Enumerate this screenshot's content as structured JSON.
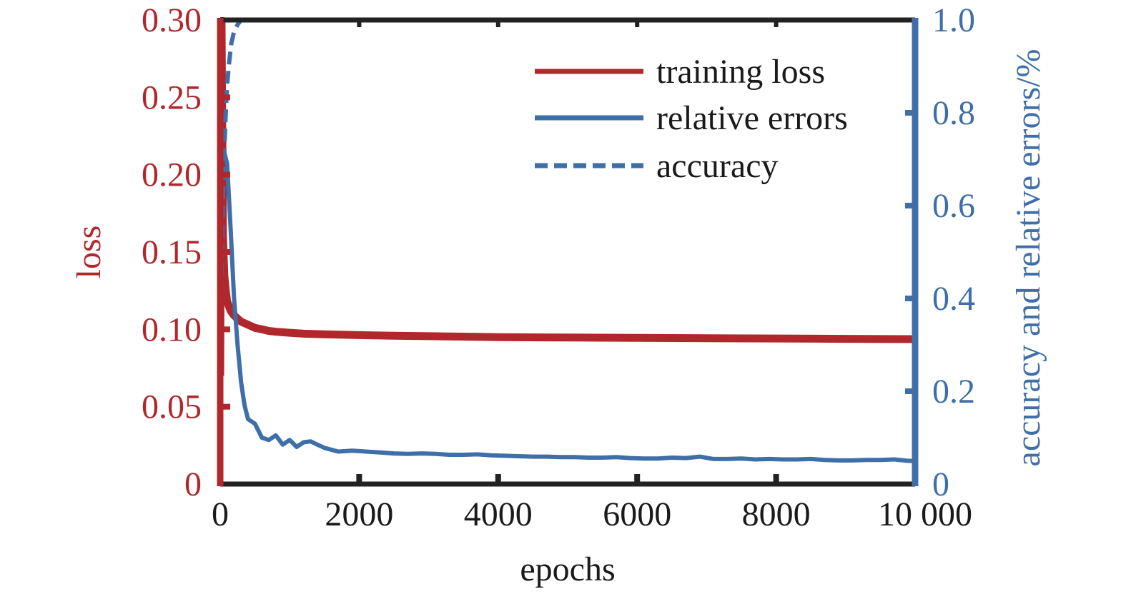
{
  "colors": {
    "loss": "#b0282c",
    "blue": "#3f6fa8",
    "frame": "#222222"
  },
  "chart_data": {
    "type": "line",
    "xlabel": "epochs",
    "ylabel_left": "loss",
    "ylabel_right": "accuracy and relative errors/%",
    "xlim": [
      0,
      10000
    ],
    "ylim_left": [
      0,
      0.3
    ],
    "ylim_right": [
      0,
      1.0
    ],
    "x_ticks": [
      {
        "value": 0,
        "label": "0"
      },
      {
        "value": 2000,
        "label": "2000"
      },
      {
        "value": 4000,
        "label": "4000"
      },
      {
        "value": 6000,
        "label": "6000"
      },
      {
        "value": 8000,
        "label": "8000"
      },
      {
        "value": 10000,
        "label": "10 000"
      }
    ],
    "y_left_ticks": [
      {
        "value": 0,
        "label": "0"
      },
      {
        "value": 0.05,
        "label": "0.05"
      },
      {
        "value": 0.1,
        "label": "0.10"
      },
      {
        "value": 0.15,
        "label": "0.15"
      },
      {
        "value": 0.2,
        "label": "0.20"
      },
      {
        "value": 0.25,
        "label": "0.25"
      },
      {
        "value": 0.3,
        "label": "0.30"
      }
    ],
    "y_right_ticks": [
      {
        "value": 0,
        "label": "0"
      },
      {
        "value": 0.2,
        "label": "0.2"
      },
      {
        "value": 0.4,
        "label": "0.4"
      },
      {
        "value": 0.6,
        "label": "0.6"
      },
      {
        "value": 0.8,
        "label": "0.8"
      },
      {
        "value": 1.0,
        "label": "1.0"
      }
    ],
    "grid": false,
    "legend_position": "top-right",
    "series": [
      {
        "name": "training loss",
        "axis": "left",
        "style": "solid",
        "x": [
          0,
          20,
          40,
          60,
          80,
          100,
          150,
          200,
          250,
          300,
          400,
          500,
          600,
          700,
          800,
          1000,
          1200,
          1500,
          2000,
          2500,
          3000,
          3500,
          4000,
          5000,
          6000,
          7000,
          8000,
          9000,
          10000
        ],
        "y": [
          0.07,
          0.3,
          0.16,
          0.135,
          0.125,
          0.118,
          0.112,
          0.109,
          0.107,
          0.105,
          0.103,
          0.101,
          0.1,
          0.099,
          0.0985,
          0.0978,
          0.0972,
          0.0968,
          0.0963,
          0.0959,
          0.0956,
          0.0953,
          0.095,
          0.0947,
          0.0945,
          0.0943,
          0.0941,
          0.0939,
          0.0937
        ]
      },
      {
        "name": "relative errors",
        "axis": "right",
        "style": "solid",
        "x": [
          0,
          50,
          100,
          150,
          200,
          250,
          300,
          350,
          400,
          500,
          600,
          700,
          800,
          900,
          1000,
          1100,
          1200,
          1300,
          1400,
          1500,
          1700,
          1900,
          2100,
          2300,
          2500,
          2700,
          2900,
          3100,
          3300,
          3500,
          3700,
          3900,
          4100,
          4300,
          4500,
          4700,
          4900,
          5100,
          5300,
          5500,
          5700,
          5900,
          6100,
          6300,
          6500,
          6700,
          6900,
          7100,
          7300,
          7500,
          7700,
          7900,
          8100,
          8300,
          8500,
          8700,
          8900,
          9100,
          9300,
          9500,
          9700,
          9900,
          10000
        ],
        "y": [
          0.72,
          0.72,
          0.69,
          0.55,
          0.4,
          0.3,
          0.22,
          0.17,
          0.14,
          0.13,
          0.1,
          0.095,
          0.105,
          0.085,
          0.095,
          0.08,
          0.09,
          0.092,
          0.085,
          0.078,
          0.07,
          0.072,
          0.07,
          0.068,
          0.066,
          0.065,
          0.066,
          0.065,
          0.063,
          0.063,
          0.064,
          0.062,
          0.061,
          0.06,
          0.059,
          0.059,
          0.058,
          0.058,
          0.057,
          0.057,
          0.058,
          0.056,
          0.055,
          0.055,
          0.057,
          0.056,
          0.059,
          0.054,
          0.054,
          0.055,
          0.053,
          0.054,
          0.053,
          0.053,
          0.054,
          0.052,
          0.051,
          0.051,
          0.052,
          0.052,
          0.053,
          0.05,
          0.05
        ]
      },
      {
        "name": "accuracy",
        "axis": "right",
        "style": "dashed",
        "x": [
          0,
          20,
          40,
          60,
          80,
          100,
          130,
          160,
          200,
          250,
          300,
          400,
          600,
          1000,
          2000,
          4000,
          6000,
          8000,
          10000
        ],
        "y": [
          0.24,
          0.45,
          0.62,
          0.72,
          0.8,
          0.86,
          0.91,
          0.95,
          0.975,
          0.99,
          1.0,
          1.0,
          1.0,
          1.0,
          1.0,
          1.0,
          1.0,
          1.0,
          1.0
        ]
      }
    ]
  }
}
